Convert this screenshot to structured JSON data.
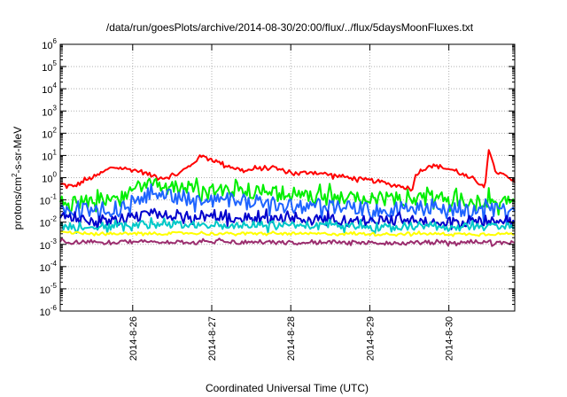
{
  "chart_data": {
    "type": "line",
    "title": "/data/run/goesPlots/archive/2014-08-30/20:00/flux/../flux/5daysMoonFluxes.txt",
    "xlabel": "Coordinated Universal Time (UTC)",
    "ylabel": {
      "pre": "protons/cm",
      "sup": "2",
      "post": "-s-sr-MeV"
    },
    "yscale": "log",
    "ylim": [
      1e-06,
      1000000.0
    ],
    "y_ticks": [
      {
        "base": "10",
        "exp": "-6"
      },
      {
        "base": "10",
        "exp": "-5"
      },
      {
        "base": "10",
        "exp": "-4"
      },
      {
        "base": "10",
        "exp": "-3"
      },
      {
        "base": "10",
        "exp": "-2"
      },
      {
        "base": "10",
        "exp": "-1"
      },
      {
        "base": "10",
        "exp": "0"
      },
      {
        "base": "10",
        "exp": "1"
      },
      {
        "base": "10",
        "exp": "2"
      },
      {
        "base": "10",
        "exp": "3"
      },
      {
        "base": "10",
        "exp": "4"
      },
      {
        "base": "10",
        "exp": "5"
      },
      {
        "base": "10",
        "exp": "6"
      }
    ],
    "xlim": [
      "2014-08-25 02:00",
      "2014-08-30 20:00"
    ],
    "x_ticks": [
      "2014-8-26",
      "2014-8-27",
      "2014-8-28",
      "2014-8-29",
      "2014-8-30"
    ],
    "grid": true,
    "series": [
      {
        "color": "#ff0000",
        "x": [
          "2014-08-25 02:00",
          "2014-08-25 06:00",
          "2014-08-25 10:00",
          "2014-08-25 13:00",
          "2014-08-25 15:00",
          "2014-08-25 18:00",
          "2014-08-25 22:00",
          "2014-08-26 02:00",
          "2014-08-26 06:00",
          "2014-08-26 10:00",
          "2014-08-26 14:00",
          "2014-08-26 18:00",
          "2014-08-26 20:00",
          "2014-08-26 22:00",
          "2014-08-27 02:00",
          "2014-08-27 06:00",
          "2014-08-27 10:00",
          "2014-08-27 14:00",
          "2014-08-27 18:00",
          "2014-08-27 22:00",
          "2014-08-28 02:00",
          "2014-08-28 06:00",
          "2014-08-28 10:00",
          "2014-08-28 14:00",
          "2014-08-28 18:00",
          "2014-08-28 22:00",
          "2014-08-29 02:00",
          "2014-08-29 06:00",
          "2014-08-29 10:00",
          "2014-08-29 13:00",
          "2014-08-29 14:00",
          "2014-08-29 18:00",
          "2014-08-29 22:00",
          "2014-08-30 02:00",
          "2014-08-30 06:00",
          "2014-08-30 10:00",
          "2014-08-30 11:00",
          "2014-08-30 12:00",
          "2014-08-30 14:00",
          "2014-08-30 18:00",
          "2014-08-30 20:00"
        ],
        "y": [
          0.5,
          0.4,
          0.8,
          1.2,
          1.8,
          3.0,
          2.5,
          2.0,
          1.2,
          1.0,
          1.5,
          4.0,
          8.0,
          9.0,
          5.0,
          3.0,
          2.0,
          2.5,
          3.0,
          2.0,
          1.5,
          1.8,
          1.5,
          1.2,
          1.0,
          0.8,
          0.7,
          0.5,
          0.4,
          0.3,
          1.5,
          3.5,
          3.0,
          2.0,
          1.0,
          0.5,
          0.4,
          20.0,
          2.0,
          1.0,
          0.6
        ]
      },
      {
        "color": "#00ee00",
        "x": [
          "2014-08-25 02:00",
          "2014-08-25 12:00",
          "2014-08-25 22:00",
          "2014-08-26 00:00",
          "2014-08-26 06:00",
          "2014-08-26 16:00",
          "2014-08-27 04:00",
          "2014-08-27 16:00",
          "2014-08-28 04:00",
          "2014-08-28 16:00",
          "2014-08-29 04:00",
          "2014-08-29 16:00",
          "2014-08-30 04:00",
          "2014-08-30 20:00"
        ],
        "y": [
          0.08,
          0.07,
          0.1,
          0.3,
          0.45,
          0.35,
          0.3,
          0.22,
          0.15,
          0.12,
          0.1,
          0.12,
          0.1,
          0.08
        ]
      },
      {
        "color": "#1e64ff",
        "x": [
          "2014-08-25 02:00",
          "2014-08-25 12:00",
          "2014-08-25 22:00",
          "2014-08-26 00:00",
          "2014-08-26 06:00",
          "2014-08-26 16:00",
          "2014-08-27 04:00",
          "2014-08-27 16:00",
          "2014-08-28 04:00",
          "2014-08-28 16:00",
          "2014-08-29 04:00",
          "2014-08-29 16:00",
          "2014-08-30 04:00",
          "2014-08-30 20:00"
        ],
        "y": [
          0.04,
          0.03,
          0.04,
          0.12,
          0.18,
          0.12,
          0.1,
          0.07,
          0.05,
          0.04,
          0.035,
          0.04,
          0.035,
          0.03
        ]
      },
      {
        "color": "#0000cc",
        "x": [
          "2014-08-25 02:00",
          "2014-08-25 12:00",
          "2014-08-25 22:00",
          "2014-08-26 00:00",
          "2014-08-26 06:00",
          "2014-08-26 16:00",
          "2014-08-27 04:00",
          "2014-08-27 16:00",
          "2014-08-28 04:00",
          "2014-08-28 16:00",
          "2014-08-29 04:00",
          "2014-08-29 16:00",
          "2014-08-30 04:00",
          "2014-08-30 20:00"
        ],
        "y": [
          0.015,
          0.012,
          0.013,
          0.018,
          0.025,
          0.02,
          0.018,
          0.015,
          0.013,
          0.012,
          0.011,
          0.012,
          0.011,
          0.01
        ]
      },
      {
        "color": "#00c8c8",
        "x": [
          "2014-08-25 02:00",
          "2014-08-25 12:00",
          "2014-08-25 22:00",
          "2014-08-26 06:00",
          "2014-08-26 16:00",
          "2014-08-27 04:00",
          "2014-08-27 16:00",
          "2014-08-28 04:00",
          "2014-08-28 16:00",
          "2014-08-29 04:00",
          "2014-08-29 16:00",
          "2014-08-30 04:00",
          "2014-08-30 20:00"
        ],
        "y": [
          0.007,
          0.006,
          0.007,
          0.008,
          0.008,
          0.008,
          0.007,
          0.007,
          0.007,
          0.006,
          0.007,
          0.006,
          0.006
        ]
      },
      {
        "color": "#ffff00",
        "x": [
          "2014-08-25 02:00",
          "2014-08-25 12:00",
          "2014-08-25 22:00",
          "2014-08-26 06:00",
          "2014-08-26 16:00",
          "2014-08-27 04:00",
          "2014-08-27 16:00",
          "2014-08-28 04:00",
          "2014-08-28 16:00",
          "2014-08-29 04:00",
          "2014-08-29 16:00",
          "2014-08-30 04:00",
          "2014-08-30 20:00"
        ],
        "y": [
          0.0035,
          0.003,
          0.0032,
          0.003,
          0.0032,
          0.003,
          0.0031,
          0.003,
          0.003,
          0.0029,
          0.003,
          0.0029,
          0.003
        ]
      },
      {
        "color": "#9b2d6e",
        "x": [
          "2014-08-25 02:00",
          "2014-08-25 12:00",
          "2014-08-25 22:00",
          "2014-08-26 06:00",
          "2014-08-26 16:00",
          "2014-08-27 04:00",
          "2014-08-27 16:00",
          "2014-08-28 04:00",
          "2014-08-28 16:00",
          "2014-08-29 04:00",
          "2014-08-29 16:00",
          "2014-08-30 04:00",
          "2014-08-30 20:00"
        ],
        "y": [
          0.0013,
          0.0012,
          0.0013,
          0.0013,
          0.0012,
          0.0013,
          0.0012,
          0.0012,
          0.0013,
          0.0011,
          0.0012,
          0.0012,
          0.0012
        ]
      }
    ]
  }
}
